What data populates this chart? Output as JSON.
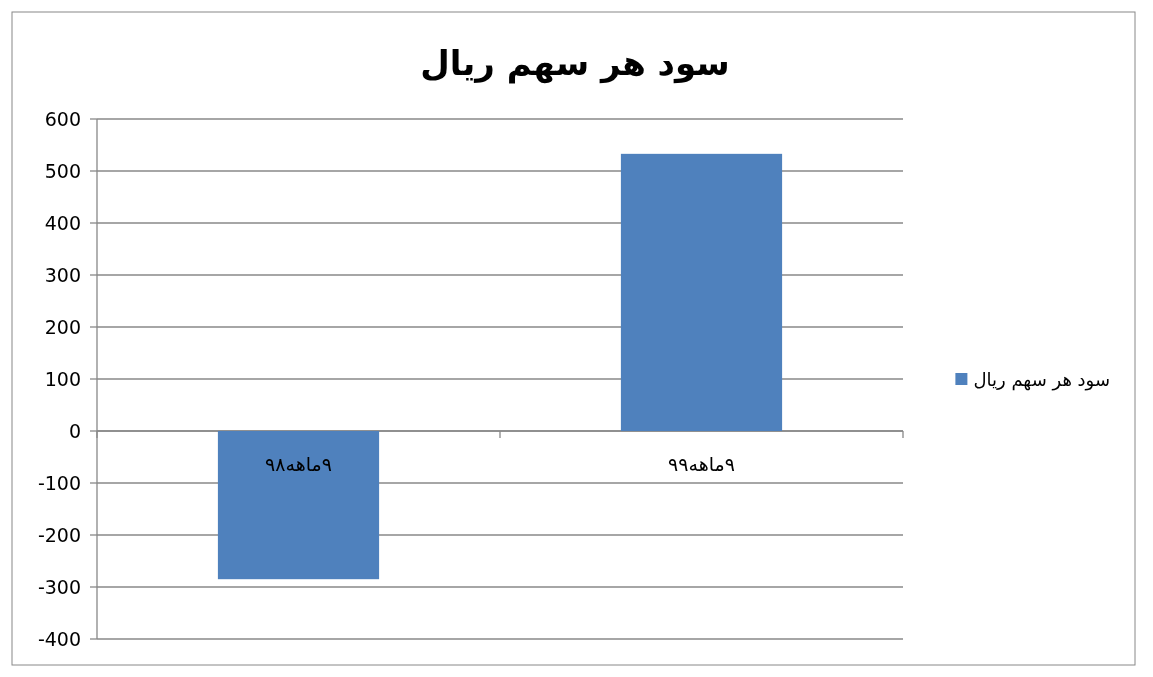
{
  "chart_data": {
    "type": "bar",
    "title": "سود هر سهم ریال",
    "categories": [
      "۹ماهه۹۸",
      "۹ماهه۹۹"
    ],
    "series": [
      {
        "name": "سود هر سهم ریال",
        "color": "#4f81bd",
        "values": [
          -285,
          533
        ]
      }
    ],
    "ylim": [
      -400,
      600
    ],
    "yticks": [
      -400,
      -300,
      -200,
      -100,
      0,
      100,
      200,
      300,
      400,
      500,
      600
    ],
    "grid": "y",
    "legend": "right"
  }
}
